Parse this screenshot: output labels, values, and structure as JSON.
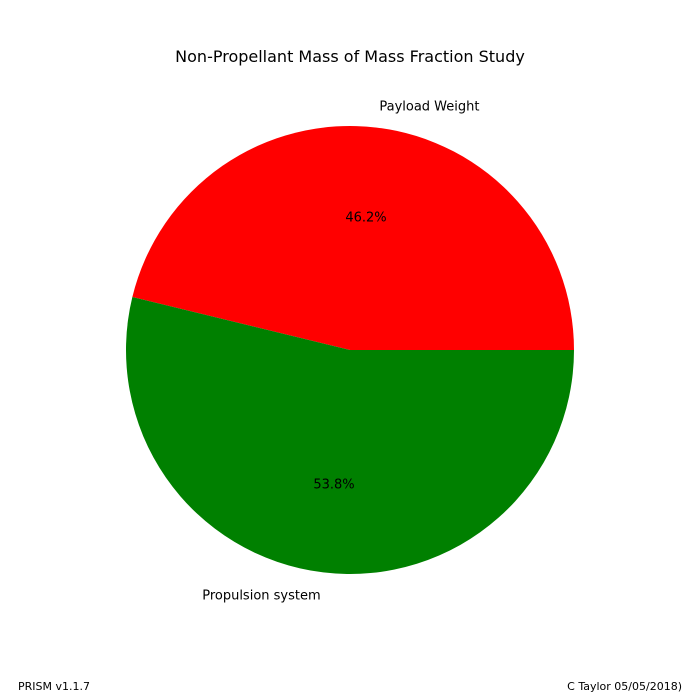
{
  "chart_data": {
    "type": "pie",
    "title": "Non-Propellant Mass of Mass Fraction Study",
    "slices": [
      {
        "label": "Payload Weight",
        "value": 46.2,
        "pct_label": "46.2%",
        "color": "#ff0000"
      },
      {
        "label": "Propulsion system",
        "value": 53.8,
        "pct_label": "53.8%",
        "color": "#008000"
      }
    ],
    "legend": "none",
    "start_angle_deg": 0,
    "direction": "counterclockwise"
  },
  "footer": {
    "left": "PRISM v1.1.7",
    "right": "C Taylor 05/05/2018)"
  }
}
